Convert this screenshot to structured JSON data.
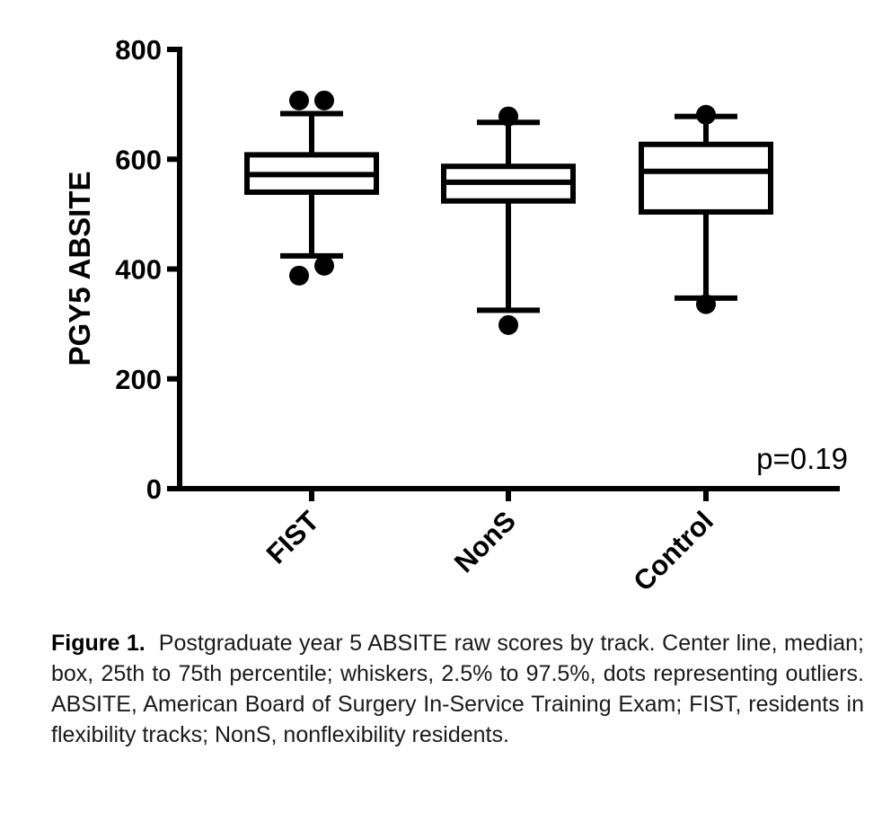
{
  "chart_data": {
    "type": "box",
    "ylabel": "PGY5 ABSITE",
    "ylim": [
      0,
      800
    ],
    "yticks": [
      0,
      200,
      400,
      600,
      800
    ],
    "annotation": "p=0.19",
    "categories": [
      "FIST",
      "NonS",
      "Control"
    ],
    "boxes": [
      {
        "category": "FIST",
        "whisker_low": 424,
        "q1": 540,
        "median": 572,
        "q3": 608,
        "whisker_high": 683,
        "outliers": [
          388,
          406,
          707,
          707
        ]
      },
      {
        "category": "NonS",
        "whisker_low": 325,
        "q1": 524,
        "median": 558,
        "q3": 587,
        "whisker_high": 667,
        "outliers": [
          298,
          678
        ]
      },
      {
        "category": "Control",
        "whisker_low": 347,
        "q1": 504,
        "median": 578,
        "q3": 627,
        "whisker_high": 678,
        "outliers": [
          336,
          681
        ]
      }
    ],
    "grid": false,
    "colors": {
      "stroke": "#000000",
      "fill": "#ffffff"
    }
  },
  "caption": {
    "label": "Figure 1.",
    "text": "Postgraduate year 5 ABSITE raw scores by track. Center line, median; box, 25th to 75th percentile; whiskers, 2.5% to 97.5%, dots representing outliers. ABSITE, American Board of Surgery In-Service Training Exam; FIST, residents in flexibility tracks; NonS, nonflexibility residents."
  }
}
